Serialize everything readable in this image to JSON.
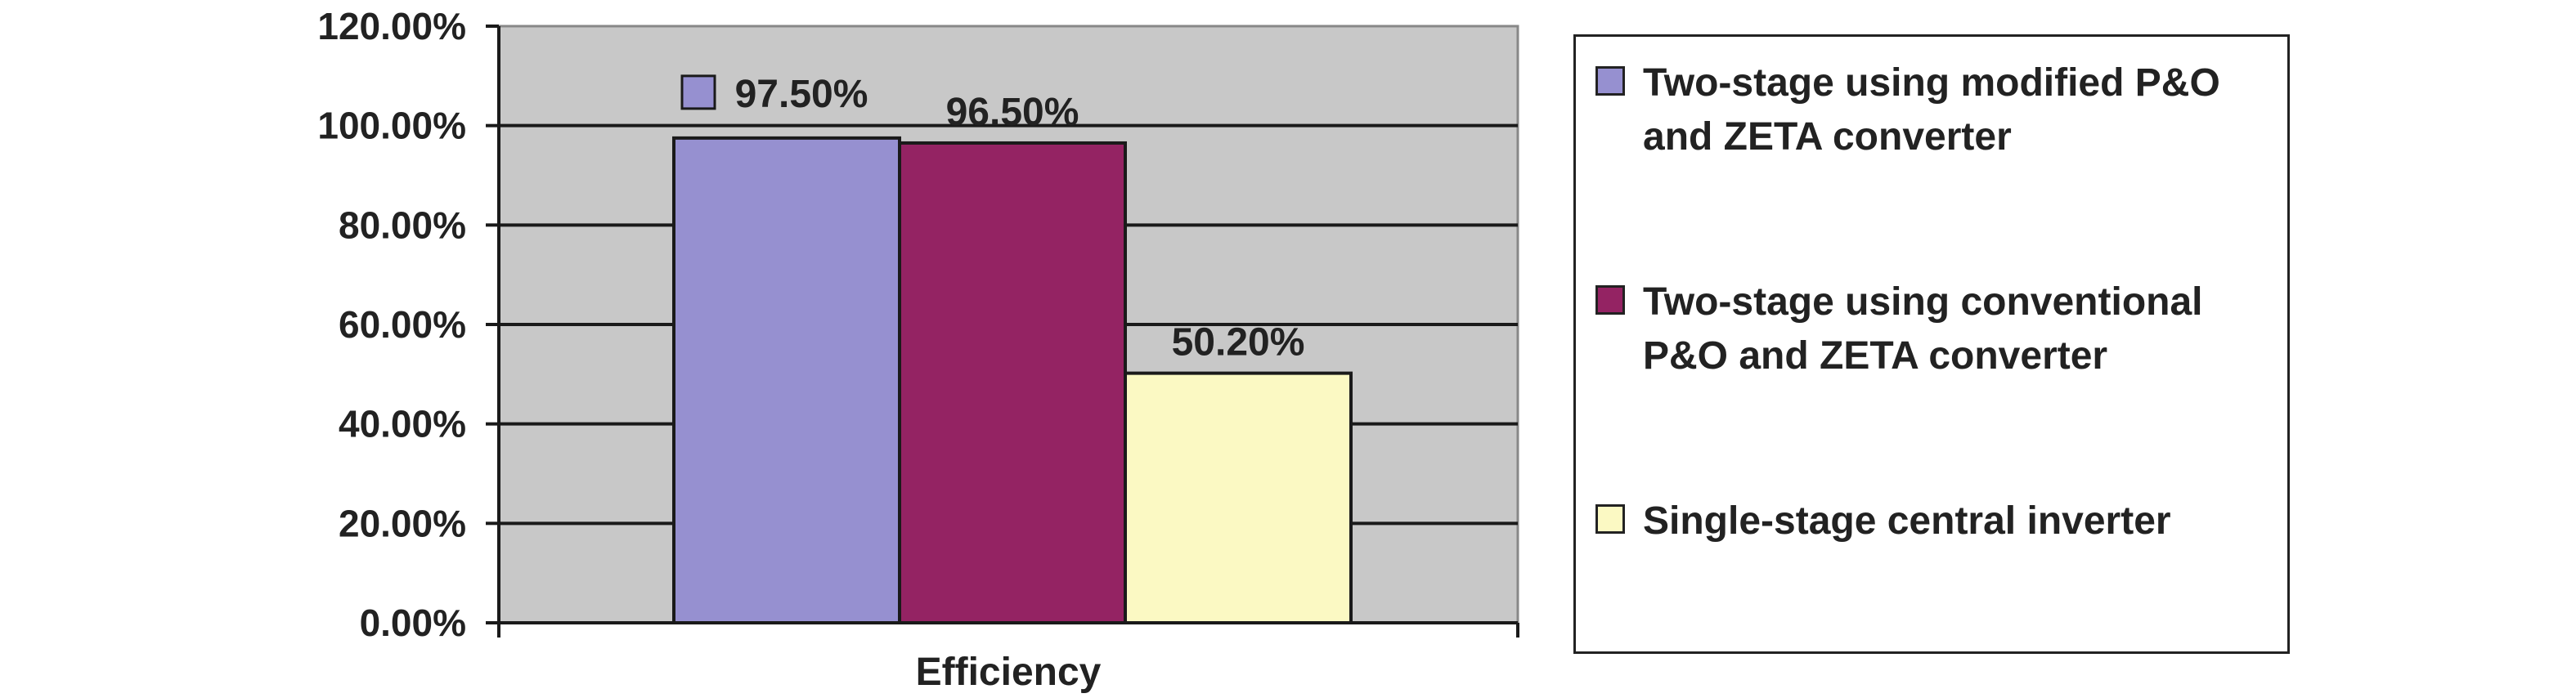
{
  "chart_data": {
    "type": "bar",
    "categories": [
      "Efficiency"
    ],
    "series": [
      {
        "name": "Two-stage using modified P&O and ZETA converter",
        "values": [
          97.5
        ],
        "label": "97.50%",
        "color": "#9690d0"
      },
      {
        "name": "Two-stage using conventional P&O and ZETA converter",
        "values": [
          96.5
        ],
        "label": "96.50%",
        "color": "#942363"
      },
      {
        "name": "Single-stage central inverter",
        "values": [
          50.2
        ],
        "label": "50.20%",
        "color": "#fbf9c3"
      }
    ],
    "ylim": [
      0,
      120
    ],
    "yticks": [
      "0.00%",
      "20.00%",
      "40.00%",
      "60.00%",
      "80.00%",
      "100.00%",
      "120.00%"
    ],
    "xlabel": "",
    "ylabel": "",
    "grid": true,
    "legend_position": "right",
    "plot_background": "#c8c8c8"
  }
}
